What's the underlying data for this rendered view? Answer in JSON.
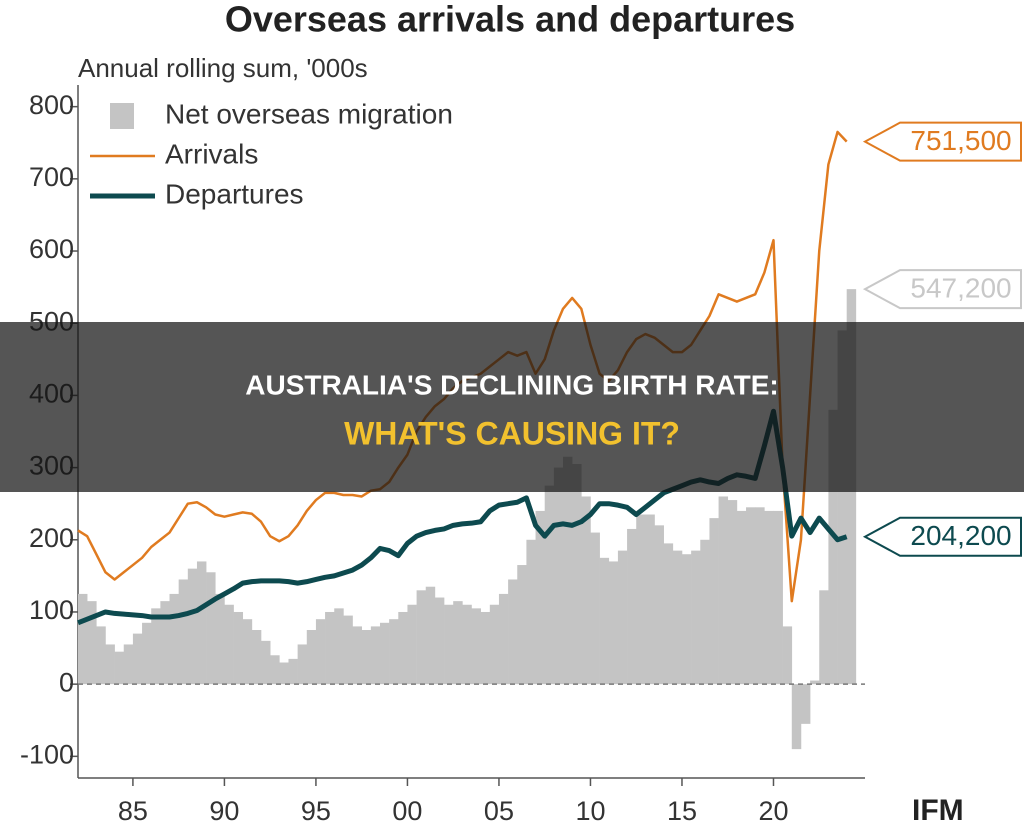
{
  "chart_data": {
    "type": "bar-line",
    "title": "Overseas arrivals and departures",
    "subtitle": "Annual rolling sum, '000s",
    "x": [
      1982,
      1982.5,
      1983,
      1983.5,
      1984,
      1984.5,
      1985,
      1985.5,
      1986,
      1986.5,
      1987,
      1987.5,
      1988,
      1988.5,
      1989,
      1989.5,
      1990,
      1990.5,
      1991,
      1991.5,
      1992,
      1992.5,
      1993,
      1993.5,
      1994,
      1994.5,
      1995,
      1995.5,
      1996,
      1996.5,
      1997,
      1997.5,
      1998,
      1998.5,
      1999,
      1999.5,
      2000,
      2000.5,
      2001,
      2001.5,
      2002,
      2002.5,
      2003,
      2003.5,
      2004,
      2004.5,
      2005,
      2005.5,
      2006,
      2006.5,
      2007,
      2007.5,
      2008,
      2008.5,
      2009,
      2009.5,
      2010,
      2010.5,
      2011,
      2011.5,
      2012,
      2012.5,
      2013,
      2013.5,
      2014,
      2014.5,
      2015,
      2015.5,
      2016,
      2016.5,
      2017,
      2017.5,
      2018,
      2018.5,
      2019,
      2019.5,
      2020,
      2020.5,
      2021,
      2021.5,
      2022,
      2022.5,
      2023,
      2023.5,
      2024
    ],
    "series": [
      {
        "name": "Net overseas migration",
        "kind": "bar",
        "color": "#c4c4c4",
        "label_color": "#c8c8c8",
        "end_label": "547,200",
        "values": [
          125,
          115,
          80,
          55,
          45,
          55,
          70,
          85,
          105,
          115,
          125,
          145,
          160,
          170,
          155,
          125,
          110,
          100,
          90,
          75,
          60,
          40,
          30,
          35,
          55,
          75,
          90,
          100,
          105,
          95,
          80,
          75,
          80,
          85,
          90,
          100,
          110,
          130,
          135,
          120,
          110,
          115,
          110,
          105,
          100,
          110,
          125,
          145,
          165,
          200,
          240,
          275,
          300,
          315,
          305,
          260,
          210,
          175,
          170,
          185,
          215,
          235,
          235,
          220,
          195,
          185,
          180,
          185,
          200,
          230,
          260,
          255,
          240,
          245,
          245,
          240,
          240,
          80,
          -90,
          -55,
          5,
          130,
          380,
          490,
          547.2
        ]
      },
      {
        "name": "Arrivals",
        "kind": "line",
        "color": "#e07b20",
        "label_color": "#e07b20",
        "end_label": "751,500",
        "values": [
          213,
          205,
          180,
          155,
          145,
          155,
          165,
          175,
          190,
          200,
          210,
          230,
          250,
          252,
          245,
          235,
          232,
          235,
          238,
          236,
          225,
          205,
          198,
          205,
          220,
          240,
          255,
          265,
          265,
          262,
          262,
          260,
          268,
          270,
          280,
          300,
          318,
          350,
          370,
          385,
          395,
          410,
          420,
          425,
          430,
          440,
          450,
          460,
          455,
          460,
          430,
          450,
          490,
          520,
          535,
          520,
          470,
          430,
          420,
          435,
          460,
          478,
          485,
          480,
          470,
          460,
          460,
          470,
          490,
          510,
          540,
          535,
          530,
          535,
          540,
          570,
          615,
          300,
          115,
          200,
          400,
          600,
          720,
          765,
          751.5
        ]
      },
      {
        "name": "Departures",
        "kind": "line",
        "color": "#0d4a4f",
        "label_color": "#0d4a4f",
        "end_label": "204,200",
        "values": [
          85,
          90,
          95,
          100,
          98,
          97,
          96,
          95,
          93,
          93,
          93,
          95,
          98,
          102,
          110,
          118,
          125,
          132,
          140,
          142,
          143,
          143,
          143,
          142,
          140,
          142,
          145,
          148,
          150,
          154,
          158,
          165,
          175,
          188,
          185,
          178,
          195,
          205,
          210,
          213,
          215,
          220,
          222,
          223,
          225,
          240,
          248,
          250,
          252,
          258,
          220,
          205,
          220,
          222,
          220,
          225,
          235,
          250,
          250,
          248,
          245,
          235,
          245,
          255,
          265,
          270,
          275,
          280,
          283,
          280,
          278,
          285,
          290,
          288,
          285,
          330,
          378,
          300,
          205,
          230,
          210,
          230,
          215,
          200,
          204.2
        ]
      }
    ],
    "xlim": [
      1982,
      2025
    ],
    "xticks": [
      {
        "value": 1985,
        "label": "85"
      },
      {
        "value": 1990,
        "label": "90"
      },
      {
        "value": 1995,
        "label": "95"
      },
      {
        "value": 2000,
        "label": "00"
      },
      {
        "value": 2005,
        "label": "05"
      },
      {
        "value": 2010,
        "label": "10"
      },
      {
        "value": 2015,
        "label": "15"
      },
      {
        "value": 2020,
        "label": "20"
      }
    ],
    "ylim": [
      -130,
      830
    ],
    "yticks": [
      -100,
      0,
      100,
      200,
      300,
      400,
      500,
      600,
      700,
      800
    ],
    "zero_line": true
  },
  "overlay": {
    "line1": "AUSTRALIA'S DECLINING BIRTH RATE:",
    "line2": "WHAT'S CAUSING IT?"
  },
  "logo": "IFM"
}
